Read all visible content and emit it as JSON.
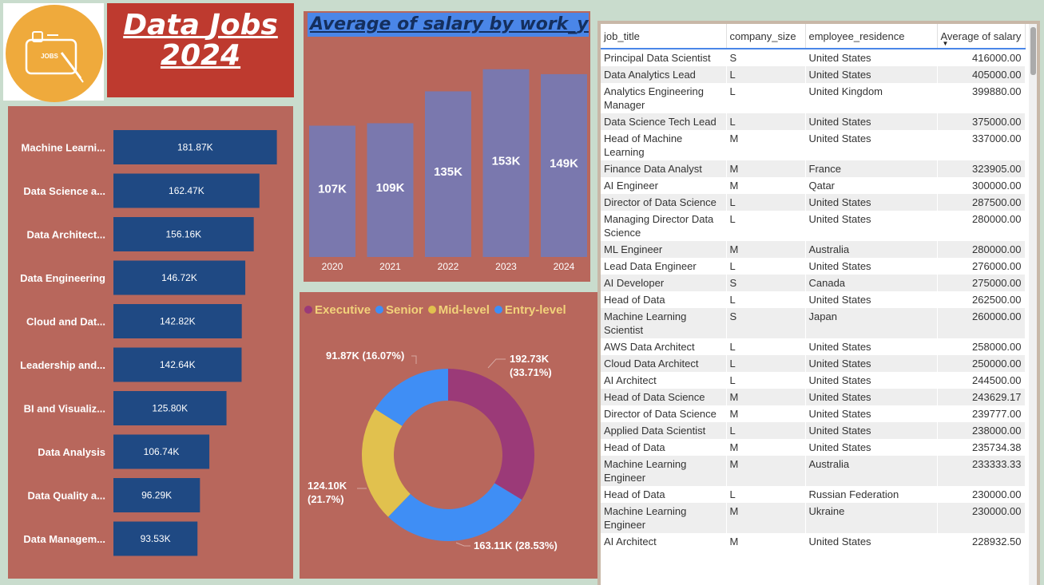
{
  "logo": {
    "icon": "jobs-board-icon",
    "text": "JOBS"
  },
  "title": {
    "line1_a": "Data",
    "line1_b": "Jobs",
    "line2": "2024"
  },
  "chart_data": [
    {
      "type": "bar",
      "orientation": "horizontal",
      "categories": [
        "Machine Learni...",
        "Data Science a...",
        "Data Architect...",
        "Data Engineering",
        "Cloud and Dat...",
        "Leadership and...",
        "BI and Visualiz...",
        "Data Analysis",
        "Data Quality a...",
        "Data Managem..."
      ],
      "values": [
        181870,
        162470,
        156160,
        146720,
        142820,
        142640,
        125800,
        106740,
        96290,
        93530
      ],
      "labels": [
        "181.87K",
        "162.47K",
        "156.16K",
        "146.72K",
        "142.82K",
        "142.64K",
        "125.80K",
        "106.74K",
        "96.29K",
        "93.53K"
      ],
      "xlim": [
        0,
        200000
      ],
      "color": "#1f4983"
    },
    {
      "type": "bar",
      "title": "Average of salary by work_year",
      "categories": [
        "2020",
        "2021",
        "2022",
        "2023",
        "2024"
      ],
      "values": [
        107000,
        109000,
        135000,
        153000,
        149000
      ],
      "labels": [
        "107K",
        "109K",
        "135K",
        "153K",
        "149K"
      ],
      "ylim": [
        0,
        160000
      ],
      "color": "#7a78ae"
    },
    {
      "type": "pie",
      "donut": true,
      "legend_position": "top",
      "series": [
        {
          "name": "Executive",
          "value": 192730,
          "label": "192.73K",
          "pct": "(33.71%)",
          "color": "#9b3a78"
        },
        {
          "name": "Senior",
          "value": 163110,
          "label": "163.11K (28.53%)",
          "color": "#3f8ef5"
        },
        {
          "name": "Mid-level",
          "value": 124100,
          "label": "124.10K",
          "pct": "(21.7%)",
          "color": "#e1c14e"
        },
        {
          "name": "Entry-level",
          "value": 91870,
          "label": "91.87K (16.07%)",
          "color": "#3f8ef5"
        }
      ]
    }
  ],
  "table": {
    "columns": [
      "job_title",
      "company_size",
      "employee_residence",
      "Average of salary"
    ],
    "rows": [
      [
        "Principal Data Scientist",
        "S",
        "United States",
        "416000.00"
      ],
      [
        "Data Analytics Lead",
        "L",
        "United States",
        "405000.00"
      ],
      [
        "Analytics Engineering Manager",
        "L",
        "United Kingdom",
        "399880.00"
      ],
      [
        "Data Science Tech Lead",
        "L",
        "United States",
        "375000.00"
      ],
      [
        "Head of Machine Learning",
        "M",
        "United States",
        "337000.00"
      ],
      [
        "Finance Data Analyst",
        "M",
        "France",
        "323905.00"
      ],
      [
        "AI Engineer",
        "M",
        "Qatar",
        "300000.00"
      ],
      [
        "Director of Data Science",
        "L",
        "United States",
        "287500.00"
      ],
      [
        "Managing Director Data Science",
        "L",
        "United States",
        "280000.00"
      ],
      [
        "ML Engineer",
        "M",
        "Australia",
        "280000.00"
      ],
      [
        "Lead Data Engineer",
        "L",
        "United States",
        "276000.00"
      ],
      [
        "AI Developer",
        "S",
        "Canada",
        "275000.00"
      ],
      [
        "Head of Data",
        "L",
        "United States",
        "262500.00"
      ],
      [
        "Machine Learning Scientist",
        "S",
        "Japan",
        "260000.00"
      ],
      [
        "AWS Data Architect",
        "L",
        "United States",
        "258000.00"
      ],
      [
        "Cloud Data Architect",
        "L",
        "United States",
        "250000.00"
      ],
      [
        "AI Architect",
        "L",
        "United States",
        "244500.00"
      ],
      [
        "Head of Data Science",
        "M",
        "United States",
        "243629.17"
      ],
      [
        "Director of Data Science",
        "M",
        "United States",
        "239777.00"
      ],
      [
        "Applied Data Scientist",
        "L",
        "United States",
        "238000.00"
      ],
      [
        "Head of Data",
        "M",
        "United States",
        "235734.38"
      ],
      [
        "Machine Learning Engineer",
        "M",
        "Australia",
        "233333.33"
      ],
      [
        "Head of Data",
        "L",
        "Russian Federation",
        "230000.00"
      ],
      [
        "Machine Learning Engineer",
        "M",
        "Ukraine",
        "230000.00"
      ],
      [
        "AI Architect",
        "M",
        "United States",
        "228932.50"
      ]
    ]
  }
}
